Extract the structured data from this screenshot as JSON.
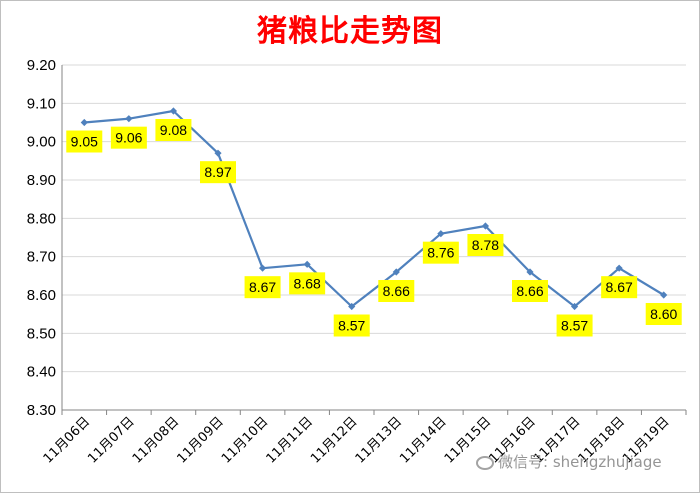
{
  "chart_data": {
    "type": "line",
    "title": "猪粮比走势图",
    "categories": [
      "11月06日",
      "11月07日",
      "11月08日",
      "11月09日",
      "11月10日",
      "11月11日",
      "11月12日",
      "11月13日",
      "11月14日",
      "11月15日",
      "11月16日",
      "11月17日",
      "11月18日",
      "11月19日"
    ],
    "series": [
      {
        "values": [
          9.05,
          9.06,
          9.08,
          8.97,
          8.67,
          8.68,
          8.57,
          8.66,
          8.76,
          8.78,
          8.66,
          8.57,
          8.67,
          8.6
        ]
      }
    ],
    "data_labels": [
      "9.05",
      "9.06",
      "9.08",
      "8.97",
      "8.67",
      "8.68",
      "8.57",
      "8.66",
      "8.76",
      "8.78",
      "8.66",
      "8.57",
      "8.67",
      "8.60"
    ],
    "y_ticks": [
      "8.30",
      "8.40",
      "8.50",
      "8.60",
      "8.70",
      "8.80",
      "8.90",
      "9.00",
      "9.10",
      "9.20"
    ],
    "ylim": [
      8.3,
      9.2
    ],
    "grid": true,
    "colors": {
      "line": "#4f81bd",
      "marker": "#4f81bd",
      "label_bg": "#ffff00",
      "title": "#ff0000",
      "grid": "#d9d9d9"
    }
  },
  "watermark": {
    "text": "微信号: shengzhujiage"
  }
}
